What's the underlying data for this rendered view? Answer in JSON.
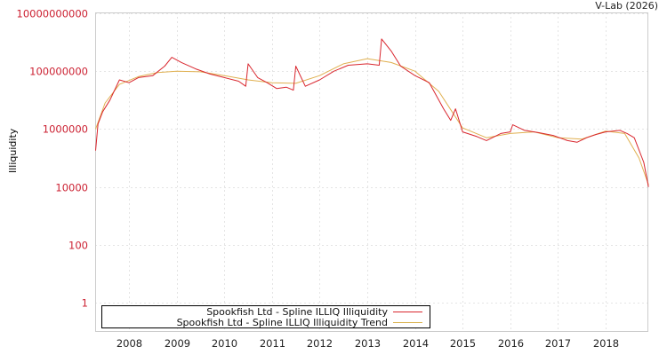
{
  "header": {
    "credit": "V-Lab (2026)"
  },
  "chart_data": {
    "type": "line",
    "title": "",
    "xlabel": "",
    "ylabel": "Illiquidity",
    "yscale": "log",
    "ylim": [
      1,
      10000000000
    ],
    "y_ticks": [
      "10000000000",
      "100000000",
      "1000000",
      "10000",
      "100",
      "1"
    ],
    "x_ticks": [
      "2008",
      "2009",
      "2010",
      "2011",
      "2012",
      "2013",
      "2014",
      "2015",
      "2016",
      "2017",
      "2018"
    ],
    "grid": true,
    "legend_position": "bottom-left inside",
    "series": [
      {
        "name": "Spookfish Ltd - Spline ILLIQ Illiquidity",
        "color": "#d9262e",
        "x": [
          2007.3,
          2007.35,
          2007.45,
          2007.6,
          2007.8,
          2008.0,
          2008.2,
          2008.5,
          2008.75,
          2008.9,
          2009.1,
          2009.4,
          2009.7,
          2010.0,
          2010.3,
          2010.45,
          2010.5,
          2010.7,
          2010.9,
          2011.1,
          2011.3,
          2011.45,
          2011.5,
          2011.7,
          2012.0,
          2012.3,
          2012.6,
          2013.0,
          2013.25,
          2013.3,
          2013.5,
          2013.7,
          2014.0,
          2014.3,
          2014.6,
          2014.75,
          2014.85,
          2015.0,
          2015.3,
          2015.5,
          2015.8,
          2016.0,
          2016.05,
          2016.3,
          2016.6,
          2016.9,
          2017.2,
          2017.4,
          2017.6,
          2017.8,
          2018.0,
          2018.3,
          2018.45,
          2018.6,
          2018.8,
          2018.9
        ],
        "values": [
          180000,
          1500000,
          4000000,
          10000000,
          50000000,
          40000000,
          60000000,
          70000000,
          150000000,
          300000000,
          200000000,
          120000000,
          80000000,
          60000000,
          45000000,
          30000000,
          180000000,
          60000000,
          40000000,
          25000000,
          28000000,
          22000000,
          150000000,
          30000000,
          50000000,
          100000000,
          160000000,
          180000000,
          160000000,
          1300000000,
          500000000,
          150000000,
          70000000,
          40000000,
          5000000,
          2000000,
          5000000,
          800000,
          550000,
          400000,
          700000,
          800000,
          1400000,
          900000,
          750000,
          600000,
          400000,
          350000,
          500000,
          650000,
          800000,
          900000,
          700000,
          500000,
          70000,
          10000
        ]
      },
      {
        "name": "Spookfish Ltd - Spline ILLIQ Illiquidity Trend",
        "color": "#e0b050",
        "x": [
          2007.3,
          2007.5,
          2007.8,
          2008.2,
          2008.6,
          2009.0,
          2009.5,
          2010.0,
          2010.5,
          2011.0,
          2011.5,
          2012.0,
          2012.5,
          2013.0,
          2013.5,
          2014.0,
          2014.5,
          2015.0,
          2015.5,
          2016.0,
          2016.5,
          2017.0,
          2017.5,
          2018.0,
          2018.4,
          2018.7,
          2018.9
        ],
        "values": [
          1000000,
          8000000,
          35000000,
          65000000,
          90000000,
          100000000,
          95000000,
          70000000,
          50000000,
          40000000,
          38000000,
          70000000,
          180000000,
          270000000,
          200000000,
          100000000,
          20000000,
          1100000,
          500000,
          700000,
          800000,
          500000,
          450000,
          850000,
          700000,
          100000,
          12000
        ]
      }
    ]
  },
  "legend": {
    "items": [
      {
        "label": "Spookfish Ltd - Spline ILLIQ Illiquidity",
        "color": "#d9262e"
      },
      {
        "label": "Spookfish Ltd - Spline ILLIQ Illiquidity Trend",
        "color": "#e0b050"
      }
    ]
  }
}
